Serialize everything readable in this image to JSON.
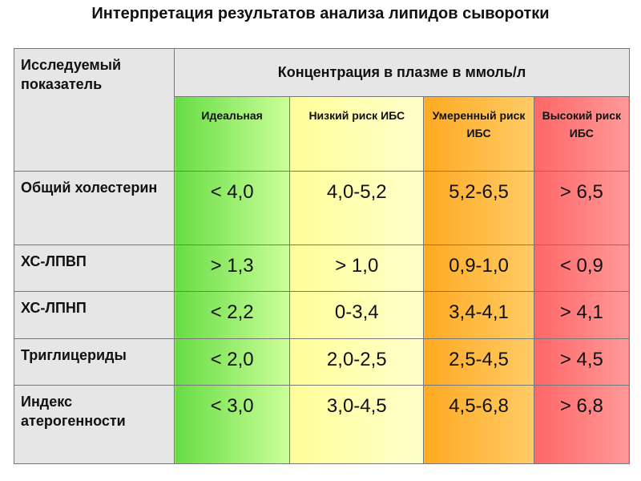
{
  "title": "Интерпретация результатов анализа липидов сыворотки",
  "table": {
    "header": {
      "first": "Исследуемый показатель",
      "group": "Концентрация в плазме в ммоль/л",
      "levels": [
        "Идеальная",
        "Низкий риск ИБС",
        "Умеренный риск ИБС",
        "Высокий риск ИБС"
      ]
    },
    "rows": [
      {
        "label": "Общий холестерин",
        "values": [
          "< 4,0",
          "4,0-5,2",
          "5,2-6,5",
          "> 6,5"
        ]
      },
      {
        "label": "ХС-ЛПВП",
        "values": [
          "> 1,3",
          "> 1,0",
          "0,9-1,0",
          "< 0,9"
        ]
      },
      {
        "label": "ХС-ЛПНП",
        "values": [
          "< 2,2",
          "0-3,4",
          "3,4-4,1",
          "> 4,1"
        ]
      },
      {
        "label": "Триглицериды",
        "values": [
          "< 2,0",
          "2,0-2,5",
          "2,5-4,5",
          "> 4,5"
        ]
      },
      {
        "label": "Индекс атерогенности",
        "values": [
          "< 3,0",
          "3,0-4,5",
          "4,5-6,8",
          "> 6,8"
        ]
      }
    ]
  }
}
